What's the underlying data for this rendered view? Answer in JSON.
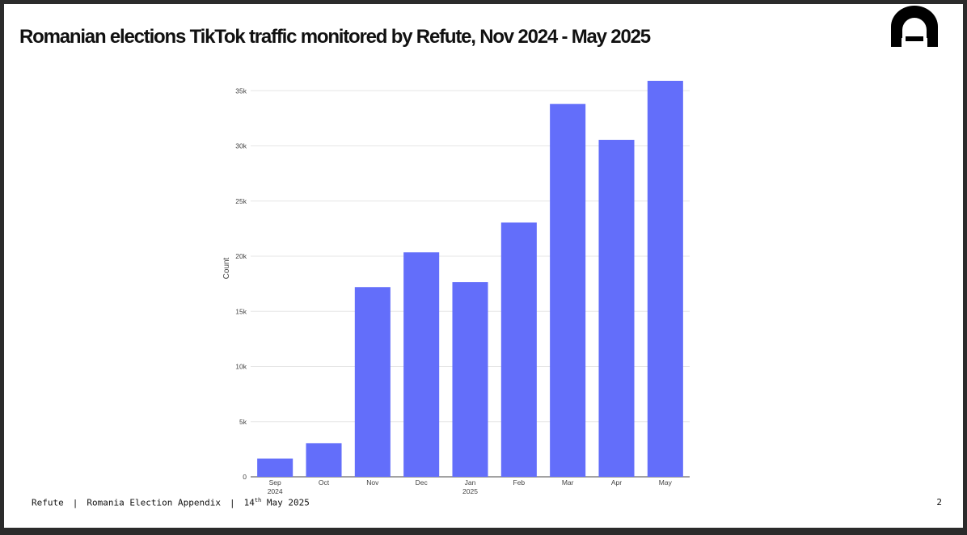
{
  "slide": {
    "title": "Romanian elections TikTok traffic monitored by Refute,  Nov 2024 - May 2025"
  },
  "footer": {
    "brand": "Refute",
    "separator": "|",
    "report": "Romania Election Appendix",
    "date_day": "14",
    "date_suffix": "th",
    "date_rest": " May 2025",
    "page_number": "2"
  },
  "logo": {
    "icon": "refute-logo-icon",
    "color": "#000000"
  },
  "chart_data": {
    "type": "bar",
    "title": "",
    "xlabel": "",
    "ylabel": "Count",
    "categories": [
      "Sep 2024",
      "Oct",
      "Nov",
      "Dec",
      "Jan 2025",
      "Feb",
      "Mar",
      "Apr",
      "May"
    ],
    "tick_labels": [
      [
        "Sep",
        "2024"
      ],
      [
        "Oct"
      ],
      [
        "Nov"
      ],
      [
        "Dec"
      ],
      [
        "Jan",
        "2025"
      ],
      [
        "Feb"
      ],
      [
        "Mar"
      ],
      [
        "Apr"
      ],
      [
        "May"
      ]
    ],
    "values": [
      1650,
      3050,
      17200,
      20350,
      17650,
      23050,
      33800,
      30550,
      35900
    ],
    "ylim": [
      0,
      35900
    ],
    "yticks": [
      0,
      5000,
      10000,
      15000,
      20000,
      25000,
      30000,
      35000
    ],
    "ytick_labels": [
      "0",
      "5k",
      "10k",
      "15k",
      "20k",
      "25k",
      "30k",
      "35k"
    ],
    "bar_color": "#636efa",
    "grid": true
  }
}
